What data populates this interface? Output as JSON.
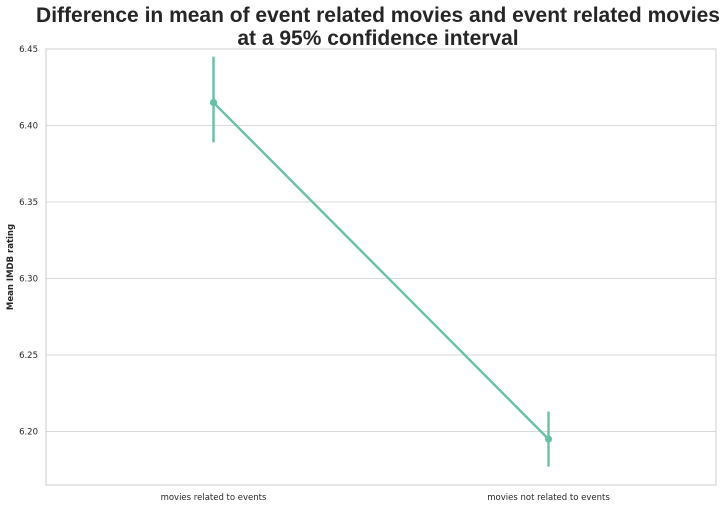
{
  "chart_data": {
    "type": "line",
    "title_lines": [
      "Difference in mean of event related movies and event related movies",
      "at a 95% confidence interval"
    ],
    "xlabel": "",
    "ylabel": "Mean IMDB rating",
    "categories": [
      "movies related to events",
      "movies not related to events"
    ],
    "series": [
      {
        "values": [
          6.415,
          6.195
        ],
        "ci_low": [
          6.389,
          6.177
        ],
        "ci_high": [
          6.445,
          6.213
        ],
        "color": "#66c2a5"
      }
    ],
    "yticks": [
      6.2,
      6.25,
      6.3,
      6.35,
      6.4,
      6.45
    ],
    "ytick_labels": [
      "6.20",
      "6.25",
      "6.30",
      "6.35",
      "6.40",
      "6.45"
    ],
    "ylim": [
      6.165,
      6.45
    ],
    "grid": "horizontal",
    "legend": "none"
  }
}
